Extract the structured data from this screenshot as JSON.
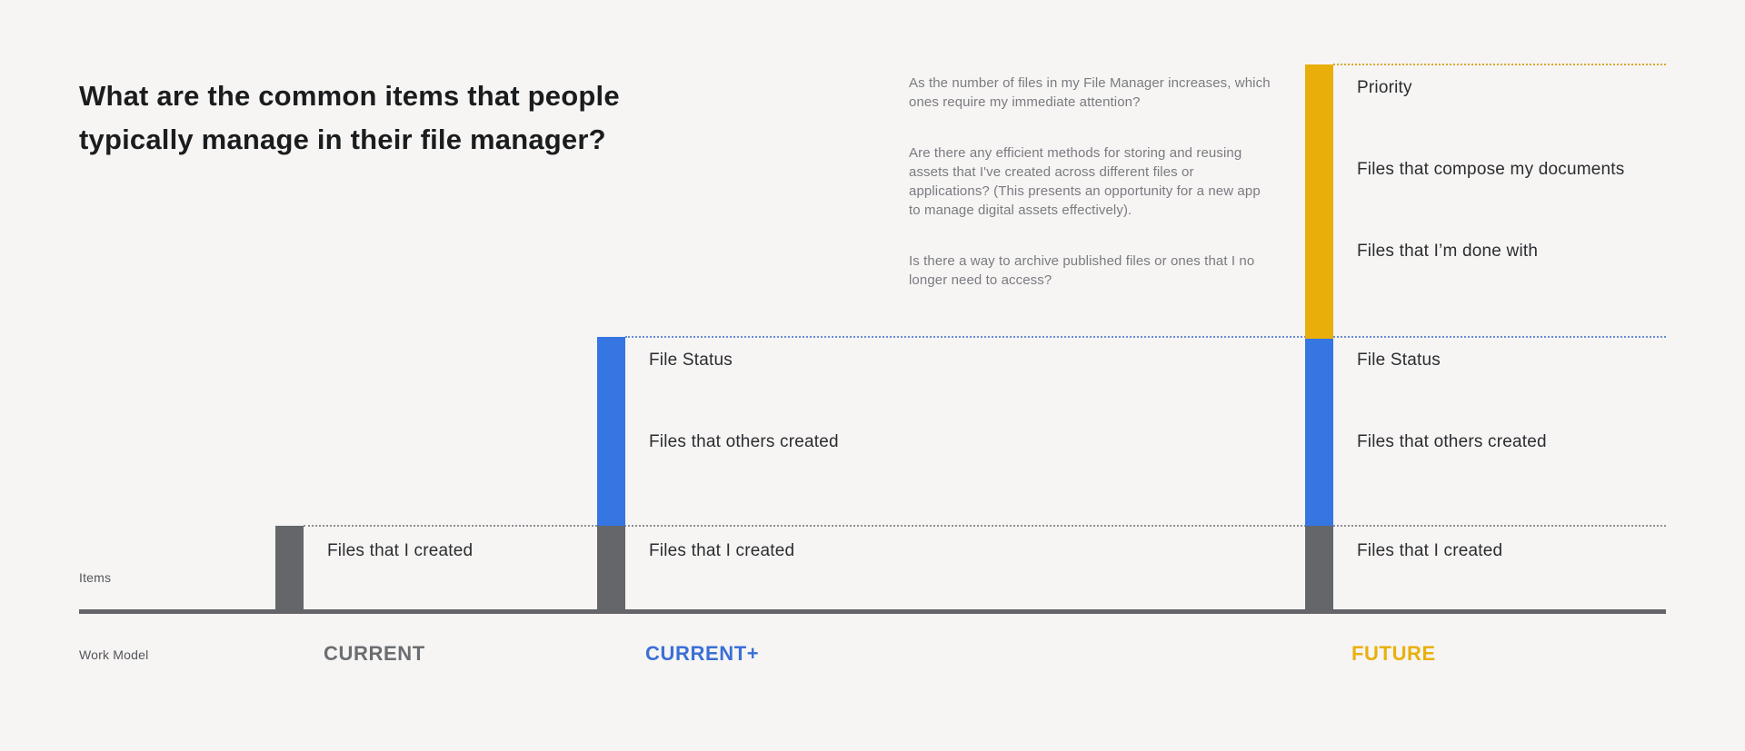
{
  "title": "What are the common items that people typically manage in their file manager?",
  "questions": [
    "As the number of files in my File Manager increases, which ones require my immediate attention?",
    "Are there any efficient methods for storing and reusing assets that I've created across different files or applications? (This presents an opportunity for a new app to manage digital assets effectively).",
    "Is there a way to archive published files or ones that I no longer need to access?"
  ],
  "axis": {
    "y_label": "Items",
    "x_label": "Work Model"
  },
  "columns": [
    {
      "id": "current",
      "label": "CURRENT",
      "accent": "#6b6d71",
      "items": [
        "Files that I created"
      ]
    },
    {
      "id": "current-plus",
      "label": "CURRENT+",
      "accent": "#3b6fd6",
      "items": [
        "File Status",
        "Files that others created",
        "Files that I created"
      ]
    },
    {
      "id": "future",
      "label": "FUTURE",
      "accent": "#e9b00d",
      "items": [
        "Priority",
        "Files that compose my documents",
        "Files that I’m done with",
        "File Status",
        "Files that others created",
        "Files that I created"
      ]
    }
  ],
  "colors": {
    "background": "#f6f5f4",
    "bar_gray": "#646669",
    "bar_blue": "#3576e2",
    "bar_yellow": "#e9ae0a",
    "axis_line": "#636569",
    "title_text": "#1b1c1e",
    "question_text": "#7b7b80",
    "item_label_text": "#2c2d30"
  }
}
